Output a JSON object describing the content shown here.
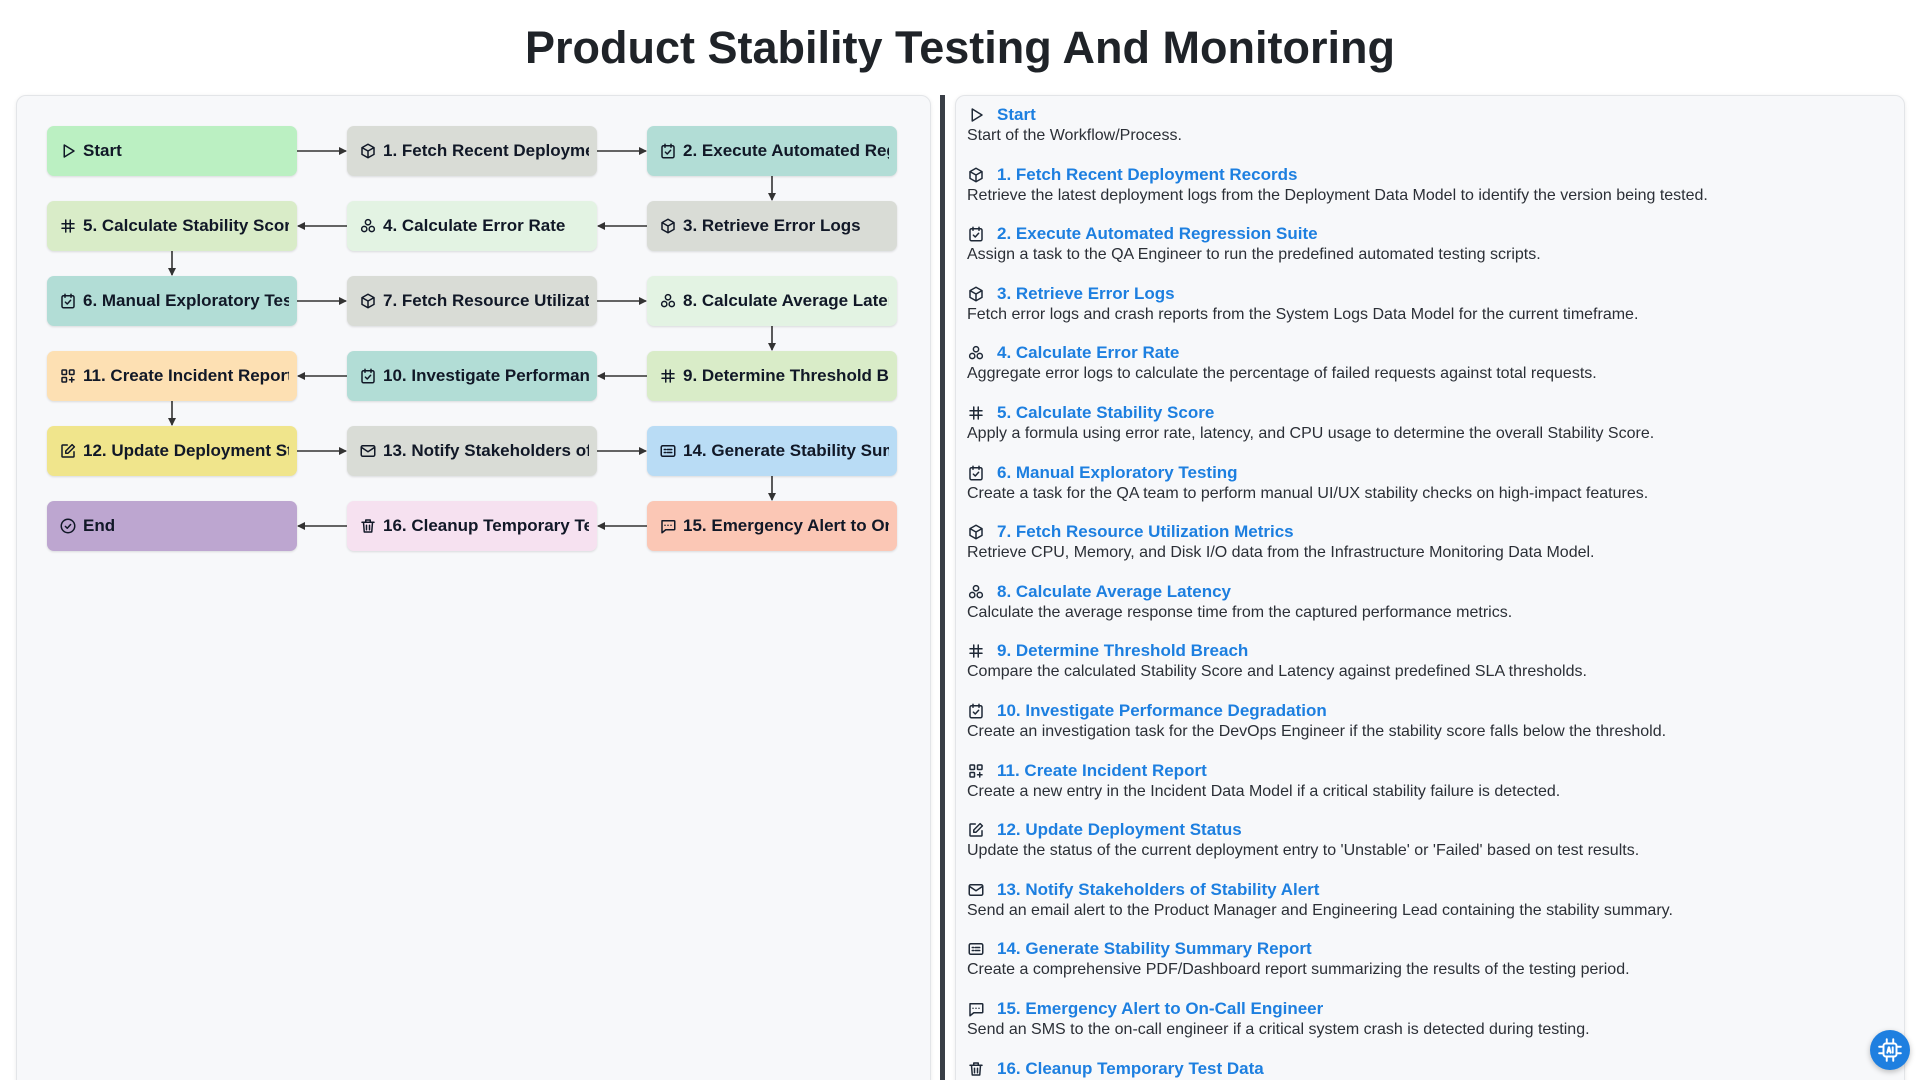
{
  "title": "Product Stability Testing And Monitoring",
  "colors": {
    "link": "#1d7fe0",
    "splitter": "#3a3f47",
    "fab": "#1e7fe0"
  },
  "nodes": [
    {
      "id": "start",
      "label": "Start",
      "icon": "play-icon",
      "color": "#bbf0c2"
    },
    {
      "id": "n1",
      "label": "1. Fetch Recent Deployment Records",
      "icon": "cube-icon",
      "color": "#d9dcd6"
    },
    {
      "id": "n2",
      "label": "2. Execute Automated Regression Suite",
      "icon": "checkbox-icon",
      "color": "#b2ddd6"
    },
    {
      "id": "n3",
      "label": "3. Retrieve Error Logs",
      "icon": "cube-icon",
      "color": "#d9dcd6"
    },
    {
      "id": "n4",
      "label": "4. Calculate Error Rate",
      "icon": "cluster-icon",
      "color": "#e3f3e3"
    },
    {
      "id": "n5",
      "label": "5. Calculate Stability Score",
      "icon": "hash-icon",
      "color": "#d9ecc8"
    },
    {
      "id": "n6",
      "label": "6. Manual Exploratory Testing",
      "icon": "checkbox-icon",
      "color": "#b2ddd6"
    },
    {
      "id": "n7",
      "label": "7. Fetch Resource Utilization Metrics",
      "icon": "cube-icon",
      "color": "#d9dcd6"
    },
    {
      "id": "n8",
      "label": "8. Calculate Average Latency",
      "icon": "cluster-icon",
      "color": "#e3f3e3"
    },
    {
      "id": "n9",
      "label": "9. Determine Threshold Breach",
      "icon": "hash-icon",
      "color": "#d9ecc8"
    },
    {
      "id": "n10",
      "label": "10. Investigate Performance Degradation",
      "icon": "checkbox-icon",
      "color": "#b2ddd6"
    },
    {
      "id": "n11",
      "label": "11. Create Incident Report",
      "icon": "grid-plus-icon",
      "color": "#fde0b3"
    },
    {
      "id": "n12",
      "label": "12. Update Deployment Status",
      "icon": "edit-icon",
      "color": "#f0e58c"
    },
    {
      "id": "n13",
      "label": "13. Notify Stakeholders of Stability Alert",
      "icon": "mail-icon",
      "color": "#d9dcd6"
    },
    {
      "id": "n14",
      "label": "14. Generate Stability Summary Report",
      "icon": "report-icon",
      "color": "#b9dcf5"
    },
    {
      "id": "n15",
      "label": "15. Emergency Alert to On-Call Engineer",
      "icon": "sms-icon",
      "color": "#fbc7b5"
    },
    {
      "id": "n16",
      "label": "16. Cleanup Temporary Test Data",
      "icon": "trash-icon",
      "color": "#f6e1f0"
    },
    {
      "id": "end",
      "label": "End",
      "icon": "check-circle-icon",
      "color": "#bda6d0"
    }
  ],
  "steps": [
    {
      "title": "Start",
      "icon": "play-icon",
      "description": "Start of the Workflow/Process."
    },
    {
      "title": "1. Fetch Recent Deployment Records",
      "icon": "cube-icon",
      "description": "Retrieve the latest deployment logs from the Deployment Data Model to identify the version being tested."
    },
    {
      "title": "2. Execute Automated Regression Suite",
      "icon": "checkbox-icon",
      "description": "Assign a task to the QA Engineer to run the predefined automated testing scripts."
    },
    {
      "title": "3. Retrieve Error Logs",
      "icon": "cube-icon",
      "description": "Fetch error logs and crash reports from the System Logs Data Model for the current timeframe."
    },
    {
      "title": "4. Calculate Error Rate",
      "icon": "cluster-icon",
      "description": "Aggregate error logs to calculate the percentage of failed requests against total requests."
    },
    {
      "title": "5. Calculate Stability Score",
      "icon": "hash-icon",
      "description": "Apply a formula using error rate, latency, and CPU usage to determine the overall Stability Score."
    },
    {
      "title": "6. Manual Exploratory Testing",
      "icon": "checkbox-icon",
      "description": "Create a task for the QA team to perform manual UI/UX stability checks on high-impact features."
    },
    {
      "title": "7. Fetch Resource Utilization Metrics",
      "icon": "cube-icon",
      "description": "Retrieve CPU, Memory, and Disk I/O data from the Infrastructure Monitoring Data Model."
    },
    {
      "title": "8. Calculate Average Latency",
      "icon": "cluster-icon",
      "description": "Calculate the average response time from the captured performance metrics."
    },
    {
      "title": "9. Determine Threshold Breach",
      "icon": "hash-icon",
      "description": "Compare the calculated Stability Score and Latency against predefined SLA thresholds."
    },
    {
      "title": "10. Investigate Performance Degradation",
      "icon": "checkbox-icon",
      "description": "Create an investigation task for the DevOps Engineer if the stability score falls below the threshold."
    },
    {
      "title": "11. Create Incident Report",
      "icon": "grid-plus-icon",
      "description": "Create a new entry in the Incident Data Model if a critical stability failure is detected."
    },
    {
      "title": "12. Update Deployment Status",
      "icon": "edit-icon",
      "description": "Update the status of the current deployment entry to 'Unstable' or 'Failed' based on test results."
    },
    {
      "title": "13. Notify Stakeholders of Stability Alert",
      "icon": "mail-icon",
      "description": "Send an email alert to the Product Manager and Engineering Lead containing the stability summary."
    },
    {
      "title": "14. Generate Stability Summary Report",
      "icon": "report-icon",
      "description": "Create a comprehensive PDF/Dashboard report summarizing the results of the testing period."
    },
    {
      "title": "15. Emergency Alert to On-Call Engineer",
      "icon": "sms-icon",
      "description": "Send an SMS to the on-call engineer if a critical system crash is detected during testing."
    },
    {
      "title": "16. Cleanup Temporary Test Data",
      "icon": "trash-icon",
      "description": ""
    }
  ],
  "assistant_button": {
    "icon": "ai-chip-icon"
  }
}
